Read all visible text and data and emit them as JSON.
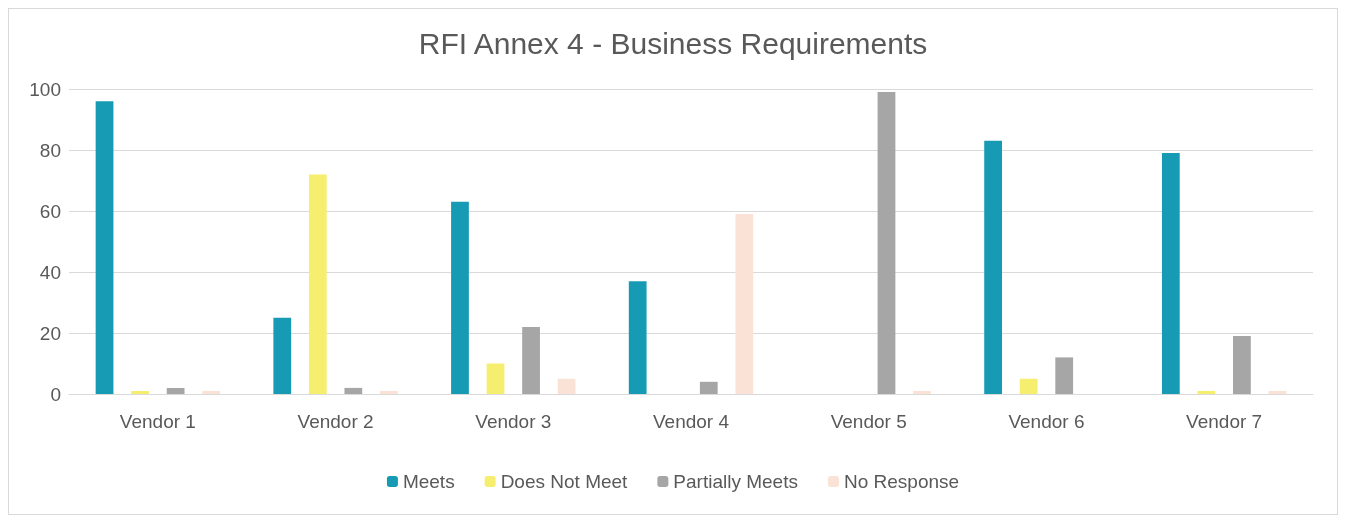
{
  "chart_data": {
    "type": "bar",
    "title": "RFI Annex 4 - Business Requirements",
    "categories": [
      "Vendor 1",
      "Vendor 2",
      "Vendor 3",
      "Vendor 4",
      "Vendor 5",
      "Vendor 6",
      "Vendor 7"
    ],
    "series": [
      {
        "name": "Meets",
        "color": "#179bb5",
        "values": [
          96,
          25,
          63,
          37,
          0,
          83,
          79
        ]
      },
      {
        "name": "Does Not Meet",
        "color": "#f5ee6e",
        "values": [
          1,
          72,
          10,
          0,
          0,
          5,
          1
        ]
      },
      {
        "name": "Partially Meets",
        "color": "#a6a6a6",
        "values": [
          2,
          2,
          22,
          4,
          99,
          12,
          19
        ]
      },
      {
        "name": "No Response",
        "color": "#fae3d6",
        "values": [
          1,
          1,
          5,
          59,
          1,
          0,
          1
        ]
      }
    ],
    "ylim": [
      0,
      100
    ],
    "yticks": [
      0,
      20,
      40,
      60,
      80,
      100
    ],
    "grid": "y",
    "legend": "bottom"
  }
}
